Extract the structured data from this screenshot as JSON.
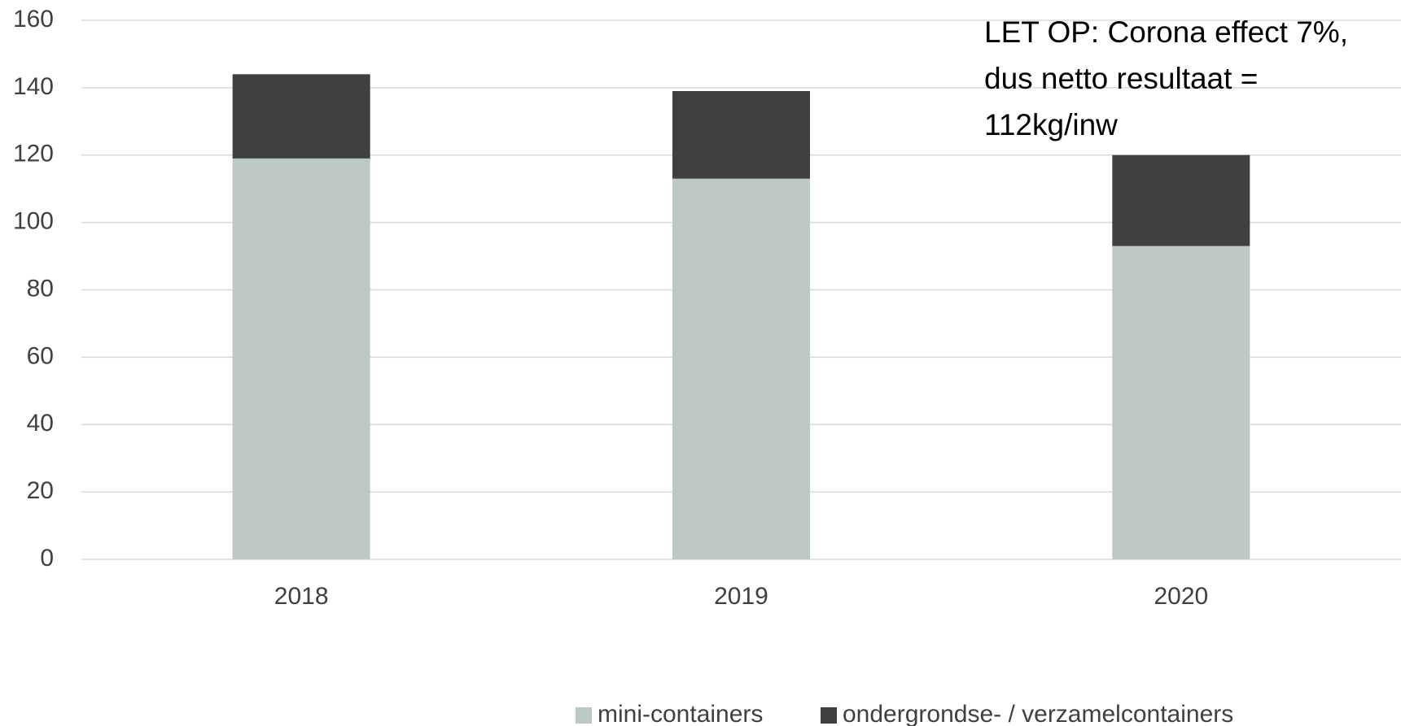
{
  "chart_data": {
    "type": "stacked_bar",
    "categories": [
      "2018",
      "2019",
      "2020"
    ],
    "series": [
      {
        "name": "mini-containers",
        "color": "#bcc8c3",
        "values": [
          119,
          113,
          93
        ]
      },
      {
        "name": "ondergrondse- / verzamelcontainers",
        "color": "#404040",
        "values": [
          25,
          26,
          27
        ]
      }
    ],
    "ylim": [
      0,
      160
    ],
    "yticks": [
      0,
      20,
      40,
      60,
      80,
      100,
      120,
      140,
      160
    ],
    "grid": true,
    "annotation": [
      "LET OP: Corona effect 7%,",
      "dus netto resultaat =",
      "112kg/inw"
    ],
    "legend": "bottom"
  }
}
